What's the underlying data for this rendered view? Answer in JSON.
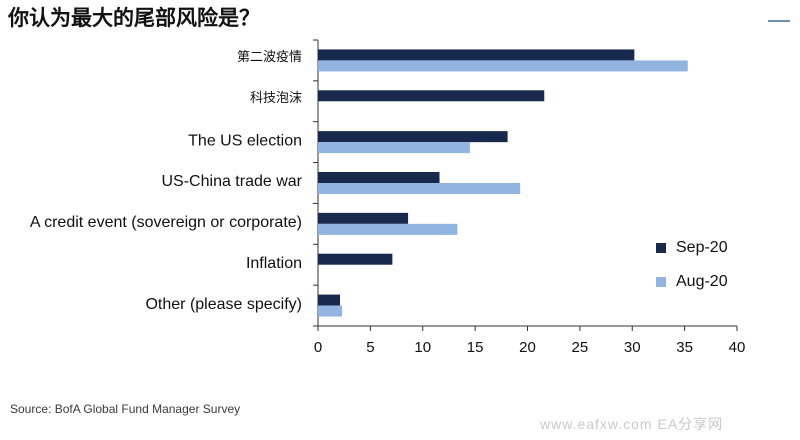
{
  "title": "你认为最大的尾部风险是？",
  "source": "Source: BofA Global Fund Manager Survey",
  "watermark": "www.eafxw.com EA分享网",
  "colors": {
    "Sep-20": "#17294d",
    "Aug-20": "#92b4e0",
    "axis": "#333333"
  },
  "chart_data": {
    "type": "bar",
    "orientation": "horizontal",
    "categories": [
      "第二波疫情",
      "科技泡沫",
      "The US election",
      "US-China trade war",
      "A credit event (sovereign or corporate)",
      "Inflation",
      "Other (please specify)"
    ],
    "series": [
      {
        "name": "Sep-20",
        "values": [
          30.2,
          21.6,
          18.1,
          11.6,
          8.6,
          7.1,
          2.1
        ]
      },
      {
        "name": "Aug-20",
        "values": [
          35.3,
          null,
          14.5,
          19.3,
          13.3,
          null,
          2.3
        ]
      }
    ],
    "xlim": [
      0,
      40
    ],
    "xticks": [
      0,
      5,
      10,
      15,
      20,
      25,
      30,
      35,
      40
    ],
    "legend_position": "right",
    "grid": false
  }
}
